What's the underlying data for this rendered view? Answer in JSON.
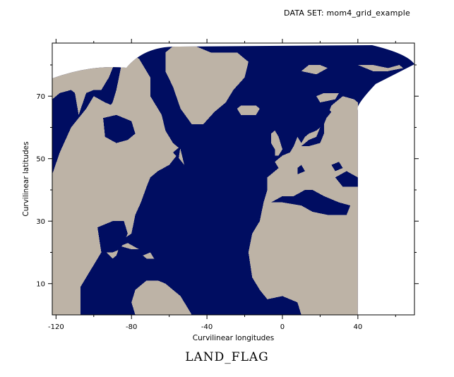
{
  "header": {
    "dataset_label": "DATA SET: mom4_grid_example"
  },
  "chart_data": {
    "type": "heatmap",
    "title": "LAND_FLAG",
    "xlabel": "Curvilinear longitudes",
    "ylabel": "Curvilinear latitudes",
    "xlim": [
      -122,
      70
    ],
    "ylim": [
      0,
      87
    ],
    "x_ticks": [
      -120,
      -80,
      -40,
      0,
      40
    ],
    "x_tick_labels": [
      "-120",
      "-80",
      "-40",
      "0",
      "40"
    ],
    "x_minor_ticks": [
      -100,
      -60,
      -20,
      20,
      60
    ],
    "y_ticks": [
      10,
      30,
      50,
      70
    ],
    "y_tick_labels": [
      "10",
      "30",
      "50",
      "70"
    ],
    "y_minor_ticks": [
      20,
      40,
      60,
      80
    ],
    "grid": false,
    "colors": {
      "land": "#BDB3A6",
      "ocean": "#000D61",
      "missing": "#FFFFFF"
    },
    "categories": [
      "ocean",
      "land"
    ],
    "land_polygons": [
      {
        "name": "North America",
        "points": [
          [
            -122,
            87
          ],
          [
            -122,
            69
          ],
          [
            -118,
            71
          ],
          [
            -112,
            72
          ],
          [
            -110,
            71
          ],
          [
            -108,
            64
          ],
          [
            -104,
            71
          ],
          [
            -100,
            72
          ],
          [
            -96,
            72
          ],
          [
            -92,
            76
          ],
          [
            -90,
            79
          ],
          [
            -87,
            82
          ],
          [
            -84,
            85
          ],
          [
            -82,
            87
          ],
          [
            -122,
            87
          ]
        ]
      },
      {
        "name": "North America lower",
        "points": [
          [
            -122,
            35
          ],
          [
            -122,
            0
          ],
          [
            -107,
            0
          ],
          [
            -107,
            9
          ],
          [
            -100,
            16
          ],
          [
            -95,
            21
          ],
          [
            -90,
            18
          ],
          [
            -88,
            19
          ],
          [
            -85,
            24
          ],
          [
            -80,
            26
          ],
          [
            -78,
            32
          ],
          [
            -75,
            36
          ],
          [
            -72,
            41
          ],
          [
            -70,
            44
          ],
          [
            -66,
            46
          ],
          [
            -60,
            48
          ],
          [
            -56,
            51
          ],
          [
            -52,
            48
          ],
          [
            -54,
            53
          ],
          [
            -58,
            55
          ],
          [
            -62,
            59
          ],
          [
            -64,
            64
          ],
          [
            -67,
            67
          ],
          [
            -70,
            70
          ],
          [
            -70,
            76
          ],
          [
            -76,
            82
          ],
          [
            -80,
            83
          ],
          [
            -85,
            81
          ],
          [
            -88,
            72
          ],
          [
            -90,
            68
          ],
          [
            -96,
            63
          ],
          [
            -94,
            58
          ],
          [
            -90,
            55
          ],
          [
            -86,
            55
          ],
          [
            -80,
            52
          ],
          [
            -76,
            56
          ],
          [
            -78,
            62
          ],
          [
            -82,
            65
          ],
          [
            -86,
            66
          ],
          [
            -94,
            68
          ],
          [
            -100,
            70
          ],
          [
            -104,
            66
          ],
          [
            -112,
            60
          ],
          [
            -118,
            52
          ],
          [
            -122,
            45
          ],
          [
            -122,
            35
          ]
        ]
      },
      {
        "name": "Greenland",
        "points": [
          [
            -62,
            84
          ],
          [
            -58,
            86
          ],
          [
            -46,
            86
          ],
          [
            -38,
            84
          ],
          [
            -24,
            84
          ],
          [
            -18,
            81
          ],
          [
            -20,
            76
          ],
          [
            -26,
            72
          ],
          [
            -30,
            68
          ],
          [
            -36,
            65
          ],
          [
            -42,
            61
          ],
          [
            -48,
            61
          ],
          [
            -54,
            66
          ],
          [
            -58,
            73
          ],
          [
            -62,
            78
          ],
          [
            -62,
            84
          ]
        ]
      },
      {
        "name": "Iceland",
        "points": [
          [
            -24,
            66
          ],
          [
            -22,
            67
          ],
          [
            -14,
            67
          ],
          [
            -12,
            66
          ],
          [
            -14,
            64
          ],
          [
            -22,
            64
          ],
          [
            -24,
            66
          ]
        ]
      },
      {
        "name": "Europe and Africa",
        "points": [
          [
            40,
            0
          ],
          [
            10,
            0
          ],
          [
            8,
            4
          ],
          [
            0,
            6
          ],
          [
            -8,
            5
          ],
          [
            -12,
            8
          ],
          [
            -16,
            12
          ],
          [
            -18,
            20
          ],
          [
            -16,
            26
          ],
          [
            -12,
            30
          ],
          [
            -10,
            36
          ],
          [
            -8,
            40
          ],
          [
            -8,
            44
          ],
          [
            -6,
            45
          ],
          [
            -2,
            47
          ],
          [
            -4,
            49
          ],
          [
            0,
            51
          ],
          [
            4,
            52
          ],
          [
            6,
            54
          ],
          [
            8,
            57
          ],
          [
            10,
            55
          ],
          [
            12,
            57
          ],
          [
            14,
            58
          ],
          [
            18,
            59
          ],
          [
            22,
            61
          ],
          [
            24,
            64
          ],
          [
            26,
            67
          ],
          [
            32,
            70
          ],
          [
            38,
            69
          ],
          [
            40,
            68
          ],
          [
            40,
            0
          ]
        ]
      },
      {
        "name": "Great Britain",
        "points": [
          [
            -4,
            51
          ],
          [
            -2,
            51
          ],
          [
            0,
            53
          ],
          [
            -2,
            57
          ],
          [
            -4,
            59
          ],
          [
            -6,
            58
          ],
          [
            -6,
            55
          ],
          [
            -4,
            53
          ],
          [
            -4,
            51
          ]
        ]
      },
      {
        "name": "Scandinavia north",
        "points": [
          [
            18,
            70
          ],
          [
            22,
            71
          ],
          [
            30,
            71
          ],
          [
            28,
            69
          ],
          [
            20,
            68
          ],
          [
            18,
            70
          ]
        ]
      },
      {
        "name": "Svalbard",
        "points": [
          [
            10,
            78
          ],
          [
            14,
            80
          ],
          [
            20,
            80
          ],
          [
            24,
            79
          ],
          [
            18,
            77
          ],
          [
            10,
            78
          ]
        ]
      },
      {
        "name": "South America",
        "points": [
          [
            -78,
            0
          ],
          [
            -80,
            4
          ],
          [
            -78,
            8
          ],
          [
            -72,
            11
          ],
          [
            -66,
            11
          ],
          [
            -62,
            10
          ],
          [
            -58,
            8
          ],
          [
            -54,
            6
          ],
          [
            -50,
            2
          ],
          [
            -48,
            0
          ],
          [
            -78,
            0
          ]
        ]
      },
      {
        "name": "Cuba",
        "points": [
          [
            -86,
            22
          ],
          [
            -82,
            23
          ],
          [
            -76,
            21
          ],
          [
            -80,
            21
          ],
          [
            -86,
            22
          ]
        ]
      },
      {
        "name": "Hispaniola",
        "points": [
          [
            -74,
            19
          ],
          [
            -70,
            20
          ],
          [
            -68,
            18
          ],
          [
            -72,
            18
          ],
          [
            -74,
            19
          ]
        ]
      },
      {
        "name": "Arctic islands",
        "points": [
          [
            -84,
            80
          ],
          [
            -78,
            81
          ],
          [
            -74,
            78
          ],
          [
            -80,
            77
          ],
          [
            -84,
            80
          ]
        ]
      },
      {
        "name": "Russia arctic",
        "points": [
          [
            40,
            80
          ],
          [
            48,
            80
          ],
          [
            56,
            79
          ],
          [
            62,
            80
          ],
          [
            64,
            79
          ],
          [
            56,
            78
          ],
          [
            48,
            78
          ],
          [
            40,
            80
          ]
        ]
      }
    ],
    "ocean_patches": [
      {
        "name": "Hudson Bay",
        "points": [
          [
            -95,
            63
          ],
          [
            -88,
            64
          ],
          [
            -80,
            62
          ],
          [
            -78,
            58
          ],
          [
            -82,
            56
          ],
          [
            -88,
            55
          ],
          [
            -94,
            57
          ],
          [
            -95,
            63
          ]
        ]
      },
      {
        "name": "Gulf of Mexico",
        "points": [
          [
            -98,
            28
          ],
          [
            -90,
            30
          ],
          [
            -84,
            30
          ],
          [
            -82,
            26
          ],
          [
            -86,
            21
          ],
          [
            -90,
            20
          ],
          [
            -96,
            20
          ],
          [
            -98,
            28
          ]
        ]
      },
      {
        "name": "Mediterranean",
        "points": [
          [
            -6,
            36
          ],
          [
            0,
            38
          ],
          [
            6,
            38
          ],
          [
            12,
            40
          ],
          [
            16,
            40
          ],
          [
            22,
            38
          ],
          [
            30,
            36
          ],
          [
            36,
            35
          ],
          [
            34,
            32
          ],
          [
            24,
            32
          ],
          [
            16,
            33
          ],
          [
            10,
            35
          ],
          [
            0,
            36
          ],
          [
            -6,
            36
          ]
        ]
      },
      {
        "name": "Black Sea",
        "points": [
          [
            28,
            44
          ],
          [
            34,
            46
          ],
          [
            40,
            44
          ],
          [
            40,
            41
          ],
          [
            32,
            41
          ],
          [
            28,
            44
          ]
        ]
      },
      {
        "name": "Baltic Sea",
        "points": [
          [
            10,
            54
          ],
          [
            14,
            56
          ],
          [
            18,
            57
          ],
          [
            20,
            60
          ],
          [
            22,
            64
          ],
          [
            24,
            66
          ],
          [
            26,
            65
          ],
          [
            22,
            62
          ],
          [
            22,
            58
          ],
          [
            20,
            55
          ],
          [
            14,
            54
          ],
          [
            10,
            54
          ]
        ]
      },
      {
        "name": "Caspian",
        "points": [
          [
            26,
            48
          ],
          [
            30,
            49
          ],
          [
            32,
            47
          ],
          [
            28,
            46
          ],
          [
            26,
            48
          ]
        ]
      },
      {
        "name": "Red Sea",
        "points": [
          [
            8,
            47
          ],
          [
            10,
            48
          ],
          [
            12,
            46
          ],
          [
            8,
            45
          ],
          [
            8,
            47
          ]
        ]
      },
      {
        "name": "Labrador inlet",
        "points": [
          [
            -58,
            52
          ],
          [
            -54,
            54
          ],
          [
            -55,
            50
          ],
          [
            -58,
            52
          ]
        ]
      }
    ]
  }
}
